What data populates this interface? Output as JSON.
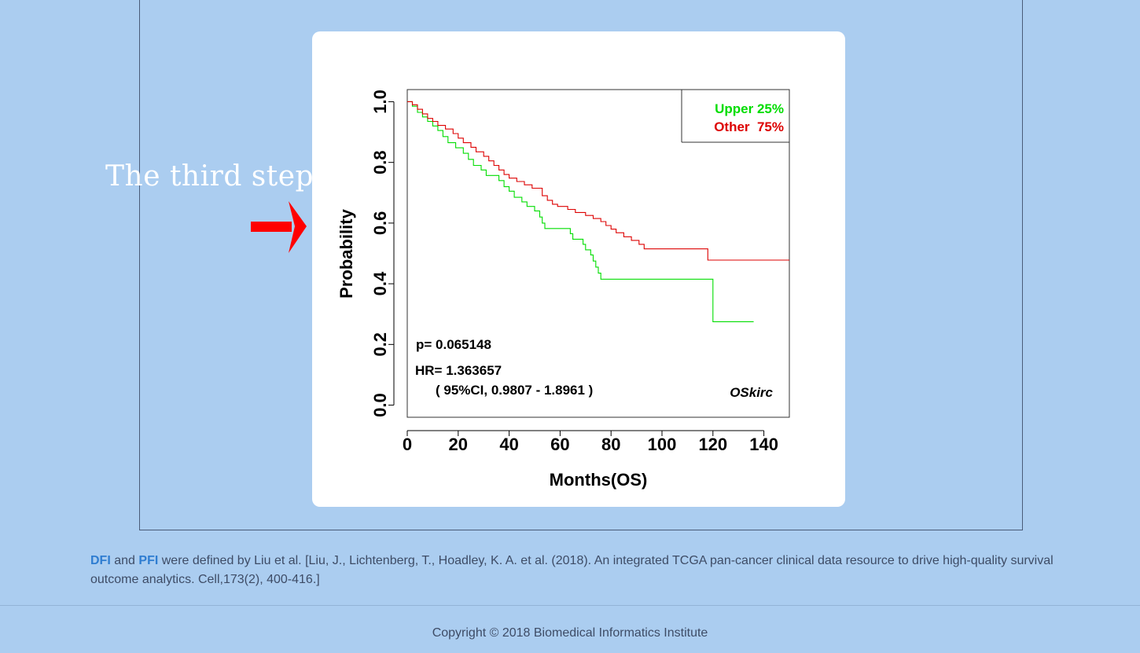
{
  "annotation": {
    "step_text": "The third step"
  },
  "chart_data": {
    "type": "line",
    "xlabel": "Months(OS)",
    "ylabel": "Probability",
    "xlim": [
      0,
      150
    ],
    "ylim": [
      -0.04,
      1.04
    ],
    "xticks": [
      0,
      20,
      40,
      60,
      80,
      100,
      120,
      140
    ],
    "yticks": [
      "0.0",
      "0.2",
      "0.4",
      "0.6",
      "0.8",
      "1.0"
    ],
    "legend_position": "top-right",
    "series": [
      {
        "name": "Upper 25%",
        "color": "#00dd00",
        "step_points": [
          [
            0,
            1.0
          ],
          [
            2,
            0.985
          ],
          [
            4,
            0.965
          ],
          [
            6,
            0.95
          ],
          [
            8,
            0.935
          ],
          [
            10,
            0.92
          ],
          [
            12,
            0.905
          ],
          [
            14,
            0.885
          ],
          [
            16,
            0.865
          ],
          [
            19,
            0.848
          ],
          [
            22,
            0.83
          ],
          [
            24,
            0.81
          ],
          [
            26,
            0.79
          ],
          [
            29,
            0.775
          ],
          [
            31,
            0.757
          ],
          [
            36,
            0.74
          ],
          [
            38,
            0.72
          ],
          [
            40,
            0.705
          ],
          [
            42,
            0.685
          ],
          [
            45,
            0.67
          ],
          [
            47,
            0.655
          ],
          [
            50,
            0.64
          ],
          [
            52,
            0.62
          ],
          [
            53,
            0.6
          ],
          [
            54,
            0.582
          ],
          [
            60,
            0.582
          ],
          [
            64,
            0.565
          ],
          [
            65,
            0.547
          ],
          [
            69,
            0.53
          ],
          [
            70,
            0.512
          ],
          [
            72,
            0.495
          ],
          [
            73,
            0.475
          ],
          [
            74,
            0.455
          ],
          [
            75,
            0.435
          ],
          [
            76,
            0.415
          ],
          [
            120,
            0.275
          ],
          [
            136,
            0.275
          ]
        ]
      },
      {
        "name": "Other  75%",
        "color": "#dd0000",
        "step_points": [
          [
            0,
            1.0
          ],
          [
            2,
            0.99
          ],
          [
            4,
            0.975
          ],
          [
            6,
            0.96
          ],
          [
            8,
            0.945
          ],
          [
            10,
            0.935
          ],
          [
            12,
            0.922
          ],
          [
            15,
            0.91
          ],
          [
            18,
            0.895
          ],
          [
            20,
            0.88
          ],
          [
            22,
            0.865
          ],
          [
            25,
            0.85
          ],
          [
            27,
            0.835
          ],
          [
            30,
            0.82
          ],
          [
            32,
            0.805
          ],
          [
            34,
            0.79
          ],
          [
            36,
            0.775
          ],
          [
            38,
            0.76
          ],
          [
            40,
            0.748
          ],
          [
            43,
            0.737
          ],
          [
            46,
            0.726
          ],
          [
            49,
            0.715
          ],
          [
            53,
            0.69
          ],
          [
            55,
            0.675
          ],
          [
            57,
            0.662
          ],
          [
            59,
            0.655
          ],
          [
            63,
            0.645
          ],
          [
            66,
            0.635
          ],
          [
            70,
            0.625
          ],
          [
            73,
            0.615
          ],
          [
            76,
            0.605
          ],
          [
            78,
            0.592
          ],
          [
            80,
            0.58
          ],
          [
            82,
            0.568
          ],
          [
            85,
            0.555
          ],
          [
            88,
            0.543
          ],
          [
            91,
            0.53
          ],
          [
            93,
            0.515
          ],
          [
            118,
            0.478
          ],
          [
            150,
            0.478
          ]
        ]
      }
    ],
    "annotations": {
      "p_value": "p= 0.065148",
      "hr": "HR= 1.363657",
      "ci": "( 95%CI, 0.9807 - 1.8961 )",
      "dataset": "OSkirc"
    }
  },
  "footer": {
    "refs_term_1": "DFI",
    "refs_and": "and",
    "refs_term_2": "PFI",
    "refs_text": "were defined by Liu et al. [Liu, J., Lichtenberg, T., Hoadley, K. A. et al. (2018). An integrated TCGA pan-cancer clinical data resource to drive high-quality survival outcome analytics. Cell,173(2), 400-416.]",
    "copyright": "Copyright © 2018 Biomedical Informatics Institute"
  }
}
